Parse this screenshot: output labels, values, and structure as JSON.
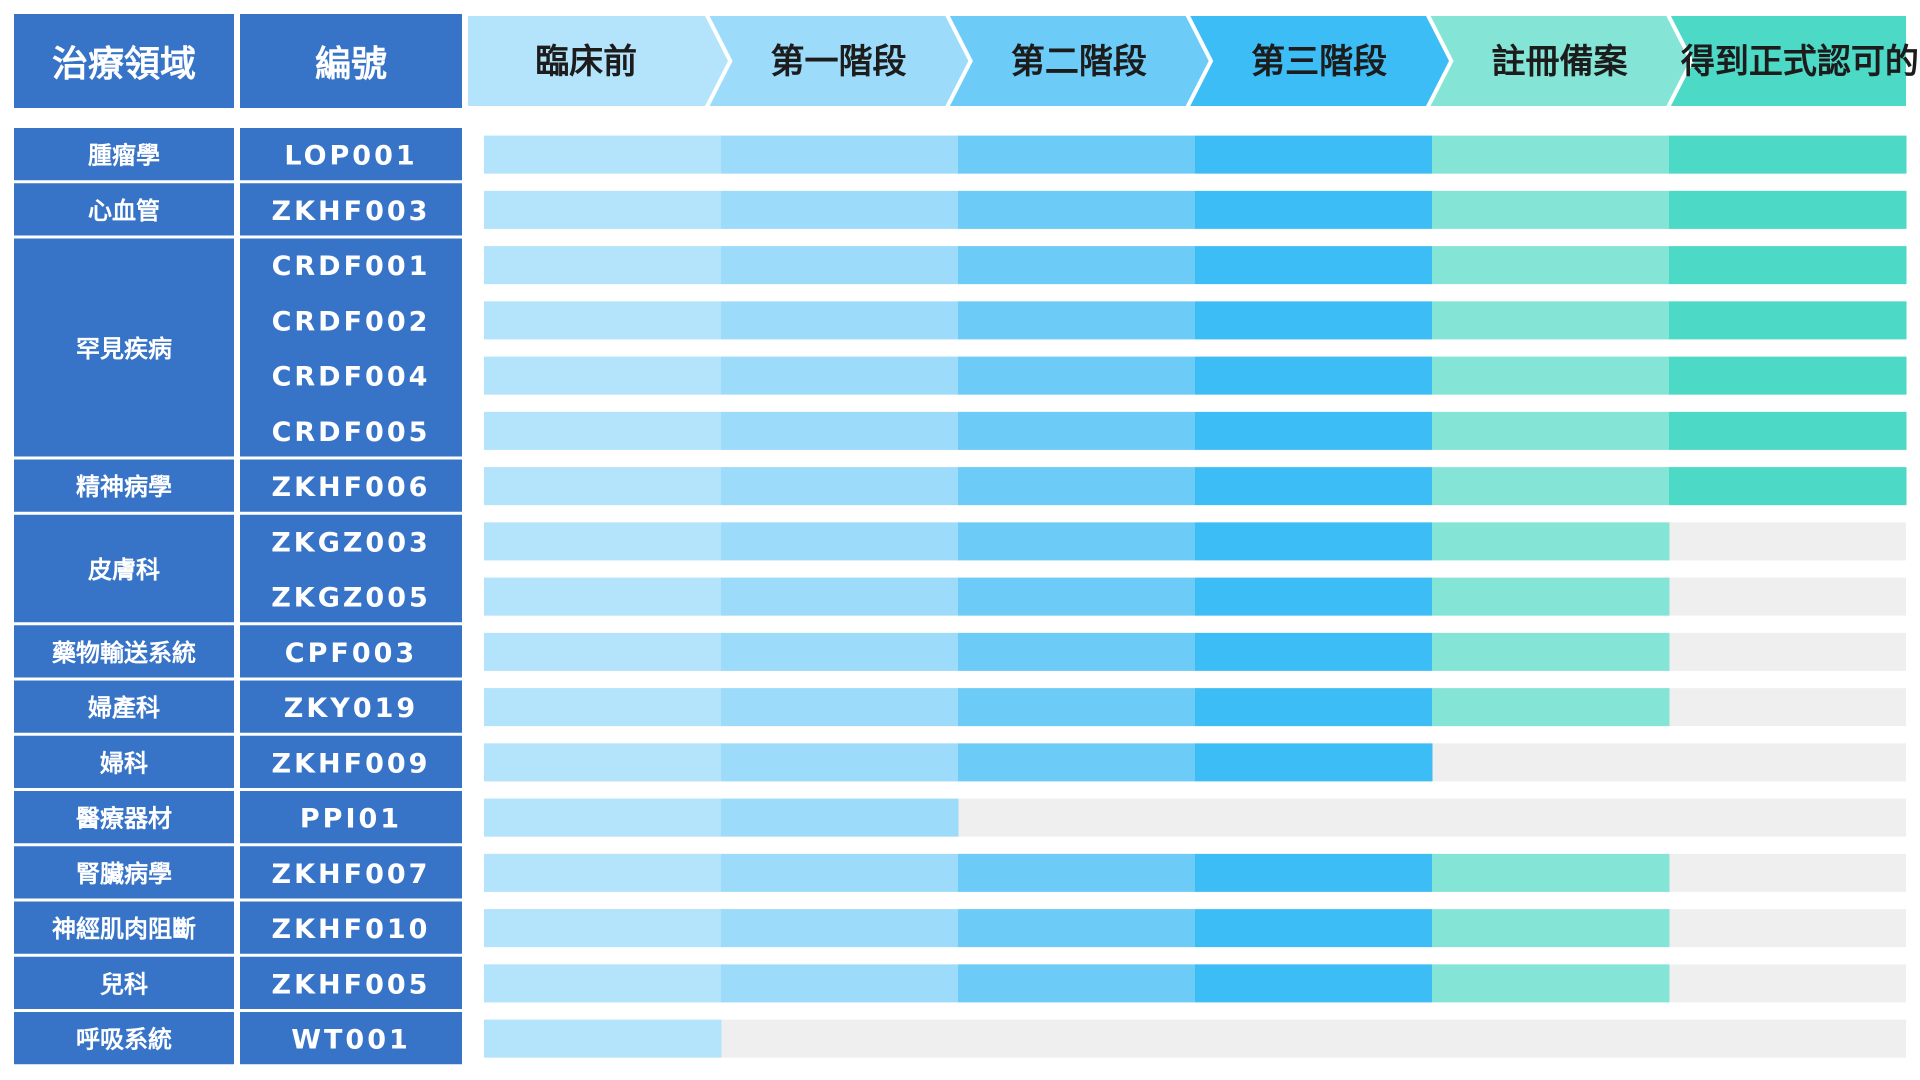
{
  "header": {
    "area_label": "治療領域",
    "code_label": "編號"
  },
  "chart_data": {
    "type": "bar",
    "title": "",
    "stages": [
      "臨床前",
      "第一階段",
      "第二階段",
      "第三階段",
      "註冊備案",
      "得到正式認可的"
    ],
    "stage_colors": [
      "#b3e4fb",
      "#9cdcfa",
      "#6cccf7",
      "#3dbdf5",
      "#84e5d6",
      "#4cd9c6"
    ],
    "empty_color": "#efefef",
    "rows": [
      {
        "area": "腫瘤學",
        "code": "LOP001",
        "stages_completed": 6
      },
      {
        "area": "心血管",
        "code": "ZKHF003",
        "stages_completed": 6
      },
      {
        "area": "罕見疾病",
        "code": "CRDF001",
        "stages_completed": 6
      },
      {
        "area": "",
        "code": "CRDF002",
        "stages_completed": 6
      },
      {
        "area": "",
        "code": "CRDF004",
        "stages_completed": 6
      },
      {
        "area": "",
        "code": "CRDF005",
        "stages_completed": 6
      },
      {
        "area": "精神病學",
        "code": "ZKHF006",
        "stages_completed": 6
      },
      {
        "area": "皮膚科",
        "code": "ZKGZ003",
        "stages_completed": 5
      },
      {
        "area": "",
        "code": "ZKGZ005",
        "stages_completed": 5
      },
      {
        "area": "藥物輸送系統",
        "code": "CPF003",
        "stages_completed": 5
      },
      {
        "area": "婦產科",
        "code": "ZKY019",
        "stages_completed": 5
      },
      {
        "area": "婦科",
        "code": "ZKHF009",
        "stages_completed": 4
      },
      {
        "area": "醫療器材",
        "code": "PPI01",
        "stages_completed": 2
      },
      {
        "area": "腎臟病學",
        "code": "ZKHF007",
        "stages_completed": 5
      },
      {
        "area": "神經肌肉阻斷",
        "code": "ZKHF010",
        "stages_completed": 5
      },
      {
        "area": "兒科",
        "code": "ZKHF005",
        "stages_completed": 5
      },
      {
        "area": "呼吸系統",
        "code": "WT001",
        "stages_completed": 1
      }
    ],
    "area_groups": [
      {
        "label": "腫瘤學",
        "rows": 1
      },
      {
        "label": "心血管",
        "rows": 1
      },
      {
        "label": "罕見疾病",
        "rows": 4
      },
      {
        "label": "精神病學",
        "rows": 1
      },
      {
        "label": "皮膚科",
        "rows": 2
      },
      {
        "label": "藥物輸送系統",
        "rows": 1
      },
      {
        "label": "婦產科",
        "rows": 1
      },
      {
        "label": "婦科",
        "rows": 1
      },
      {
        "label": "醫療器材",
        "rows": 1
      },
      {
        "label": "腎臟病學",
        "rows": 1
      },
      {
        "label": "神經肌肉阻斷",
        "rows": 1
      },
      {
        "label": "兒科",
        "rows": 1
      },
      {
        "label": "呼吸系統",
        "rows": 1
      }
    ]
  }
}
